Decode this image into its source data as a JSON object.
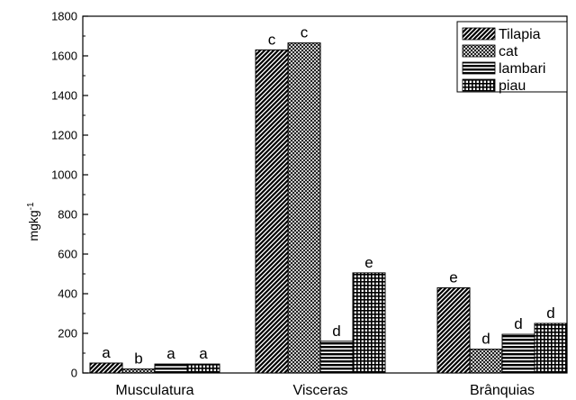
{
  "chart_data": {
    "type": "bar",
    "categories": [
      "Musculatura",
      "Visceras",
      "Brânquias"
    ],
    "series": [
      {
        "name": "Tilapia",
        "values": [
          50,
          1630,
          430
        ],
        "labels": [
          "a",
          "c",
          "e"
        ],
        "pattern": "diagonal-hatch"
      },
      {
        "name": "cat",
        "values": [
          20,
          1665,
          120
        ],
        "labels": [
          "b",
          "c",
          "d"
        ],
        "pattern": "crosshatch"
      },
      {
        "name": "lambari",
        "values": [
          45,
          160,
          195
        ],
        "labels": [
          "a",
          "d",
          "d"
        ],
        "pattern": "horizontal-lines"
      },
      {
        "name": "piau",
        "values": [
          45,
          505,
          250
        ],
        "labels": [
          "a",
          "e",
          "d"
        ],
        "pattern": "grid"
      }
    ],
    "title": "",
    "xlabel": "",
    "ylabel": "mgkg",
    "ylabel_superscript": "-1",
    "ylim": [
      0,
      1800
    ],
    "yticks": [
      "0",
      "200",
      "400",
      "600",
      "800",
      "1000",
      "1200",
      "1400",
      "1600",
      "1800"
    ],
    "legend_position": "top-right",
    "grid": false
  }
}
